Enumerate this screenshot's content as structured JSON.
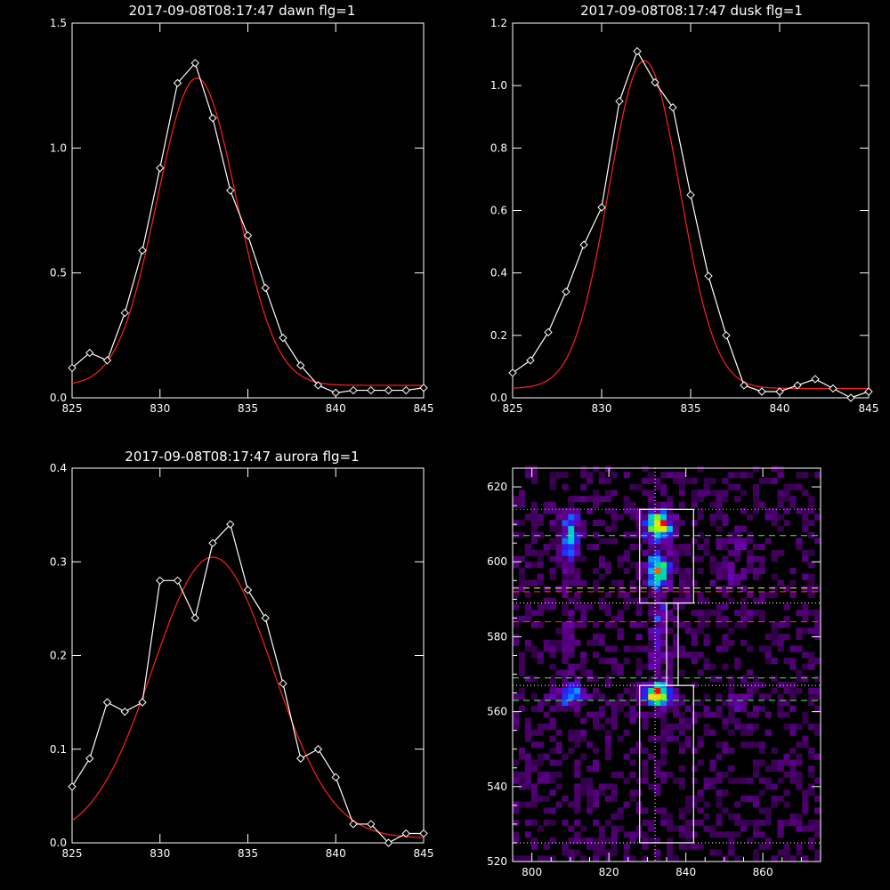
{
  "colors": {
    "background": "#000000",
    "axis": "#ffffff",
    "data_line": "#ffffff",
    "fit_line": "#ff2020",
    "green_dashed": "#40ff40",
    "red_dashed": "#ff3030",
    "dotted": "#ffffff"
  },
  "chart_data": [
    {
      "type": "line",
      "title": "2017-09-08T08:17:47 dawn flg=1",
      "xlim": [
        825,
        845
      ],
      "ylim": [
        0,
        1.5
      ],
      "xticks": [
        825,
        830,
        835,
        840,
        845
      ],
      "xtick_labels": [
        "825",
        "830",
        "835",
        "840",
        "845"
      ],
      "yticks": [
        0,
        0.5,
        1.0,
        1.5
      ],
      "ytick_labels": [
        "0.0",
        "0.5",
        "1.0",
        "1.5"
      ],
      "grid": false,
      "series": [
        {
          "style": "observed",
          "marker": "diamond",
          "x": [
            825,
            826,
            827,
            828,
            829,
            830,
            831,
            832,
            833,
            834,
            835,
            836,
            837,
            838,
            839,
            840,
            841,
            842,
            843,
            844,
            845
          ],
          "y": [
            0.12,
            0.18,
            0.15,
            0.34,
            0.59,
            0.92,
            1.26,
            1.34,
            1.12,
            0.83,
            0.65,
            0.44,
            0.24,
            0.13,
            0.05,
            0.02,
            0.03,
            0.03,
            0.03,
            0.03,
            0.04
          ]
        },
        {
          "style": "fit",
          "model": "gaussian",
          "amplitude": 1.23,
          "center": 832.1,
          "sigma": 2.25,
          "baseline": 0.05
        }
      ]
    },
    {
      "type": "line",
      "title": "2017-09-08T08:17:47 dusk flg=1",
      "xlim": [
        825,
        845
      ],
      "ylim": [
        0,
        1.2
      ],
      "xticks": [
        825,
        830,
        835,
        840,
        845
      ],
      "xtick_labels": [
        "825",
        "830",
        "835",
        "840",
        "845"
      ],
      "yticks": [
        0,
        0.2,
        0.4,
        0.6,
        0.8,
        1.0,
        1.2
      ],
      "ytick_labels": [
        "0.0",
        "0.2",
        "0.4",
        "0.6",
        "0.8",
        "1.0",
        "1.2"
      ],
      "grid": false,
      "series": [
        {
          "style": "observed",
          "marker": "diamond",
          "x": [
            825,
            826,
            827,
            828,
            829,
            830,
            831,
            832,
            833,
            834,
            835,
            836,
            837,
            838,
            839,
            840,
            841,
            842,
            843,
            844,
            845
          ],
          "y": [
            0.08,
            0.12,
            0.21,
            0.34,
            0.49,
            0.61,
            0.95,
            1.11,
            1.01,
            0.93,
            0.65,
            0.39,
            0.2,
            0.04,
            0.02,
            0.02,
            0.04,
            0.06,
            0.03,
            0.0,
            0.02
          ]
        },
        {
          "style": "fit",
          "model": "gaussian",
          "amplitude": 1.05,
          "center": 832.4,
          "sigma": 2.0,
          "baseline": 0.03
        }
      ]
    },
    {
      "type": "line",
      "title": "2017-09-08T08:17:47 aurora flg=1",
      "xlim": [
        825,
        845
      ],
      "ylim": [
        0,
        0.4
      ],
      "xticks": [
        825,
        830,
        835,
        840,
        845
      ],
      "xtick_labels": [
        "825",
        "830",
        "835",
        "840",
        "845"
      ],
      "yticks": [
        0,
        0.1,
        0.2,
        0.3,
        0.4
      ],
      "ytick_labels": [
        "0.0",
        "0.1",
        "0.2",
        "0.3",
        "0.4"
      ],
      "grid": false,
      "series": [
        {
          "style": "observed",
          "marker": "diamond",
          "x": [
            825,
            826,
            827,
            828,
            829,
            830,
            831,
            832,
            833,
            834,
            835,
            836,
            837,
            838,
            839,
            840,
            841,
            842,
            843,
            844,
            845
          ],
          "y": [
            0.06,
            0.09,
            0.15,
            0.14,
            0.15,
            0.28,
            0.28,
            0.24,
            0.32,
            0.34,
            0.27,
            0.24,
            0.17,
            0.09,
            0.1,
            0.07,
            0.02,
            0.02,
            0.0,
            0.01,
            0.01
          ]
        },
        {
          "style": "fit",
          "model": "gaussian",
          "amplitude": 0.3,
          "center": 833.0,
          "sigma": 3.4,
          "baseline": 0.005
        }
      ]
    },
    {
      "type": "heatmap",
      "title": "",
      "xlim": [
        795,
        875
      ],
      "ylim": [
        520,
        625
      ],
      "xticks": [
        800,
        820,
        840,
        860
      ],
      "xtick_labels": [
        "800",
        "820",
        "840",
        "860"
      ],
      "yticks": [
        520,
        540,
        560,
        580,
        600,
        620
      ],
      "ytick_labels": [
        "520",
        "540",
        "560",
        "580",
        "600",
        "620"
      ],
      "colormap": "black-purple-blue-cyan-green-yellow-red",
      "intensity_sources": [
        {
          "x": 832,
          "y": 609,
          "sx": 2.2,
          "sy": 2.5,
          "a": 1.0
        },
        {
          "x": 832,
          "y": 597,
          "sx": 2.2,
          "sy": 3.0,
          "a": 0.7
        },
        {
          "x": 832,
          "y": 564,
          "sx": 2.2,
          "sy": 2.0,
          "a": 1.0
        },
        {
          "x": 832,
          "y": 580,
          "sx": 1.5,
          "sy": 9.0,
          "a": 0.3
        },
        {
          "x": 809,
          "y": 606,
          "sx": 2.0,
          "sy": 5.0,
          "a": 0.45
        },
        {
          "x": 809,
          "y": 564,
          "sx": 2.5,
          "sy": 2.0,
          "a": 0.5
        },
        {
          "x": 809,
          "y": 582,
          "sx": 1.3,
          "sy": 8.0,
          "a": 0.18
        },
        {
          "x": 852,
          "y": 562,
          "sx": 1.8,
          "sy": 1.5,
          "a": 0.3
        },
        {
          "x": 852,
          "y": 600,
          "sx": 3.0,
          "sy": 6.0,
          "a": 0.12
        }
      ],
      "rectangles": [
        {
          "x": [
            828,
            842
          ],
          "y": [
            589,
            614
          ]
        },
        {
          "x": [
            828,
            842
          ],
          "y": [
            525,
            567
          ]
        },
        {
          "x": [
            835,
            838
          ],
          "y": [
            567,
            589
          ]
        }
      ],
      "hlines": [
        {
          "y": 614,
          "style": "dotted",
          "color": "green"
        },
        {
          "y": 607,
          "style": "dashed",
          "color": "green"
        },
        {
          "y": 593,
          "style": "dashed",
          "color": "yellow"
        },
        {
          "y": 592,
          "style": "dashed",
          "color": "red"
        },
        {
          "y": 589,
          "style": "dotted",
          "color": "white"
        },
        {
          "y": 584,
          "style": "dashed",
          "color": "red"
        },
        {
          "y": 569,
          "style": "dashed",
          "color": "green"
        },
        {
          "y": 567,
          "style": "dotted",
          "color": "white"
        },
        {
          "y": 563,
          "style": "dashed",
          "color": "green"
        },
        {
          "y": 525,
          "style": "dotted",
          "color": "white"
        }
      ],
      "vlines": [
        {
          "x": 832,
          "style": "dotted",
          "color": "white"
        }
      ]
    }
  ]
}
